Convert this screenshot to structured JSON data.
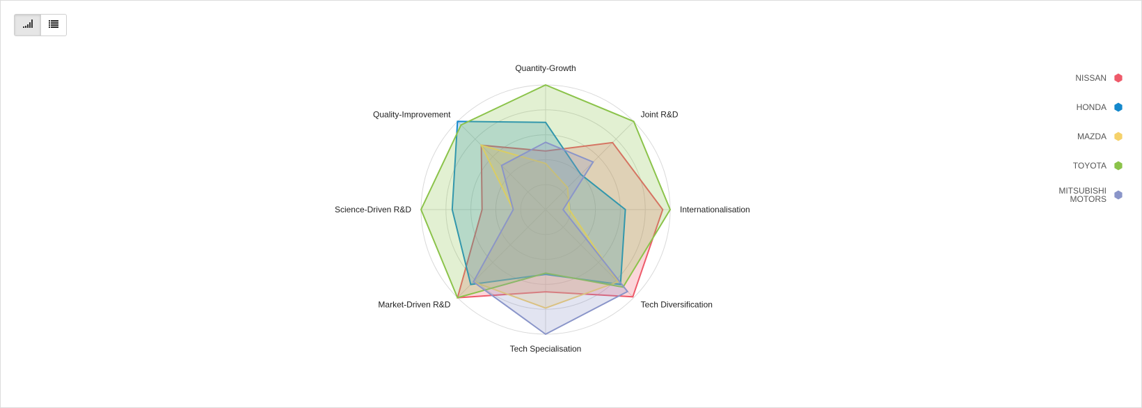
{
  "toolbar": {
    "chart_view_icon": "bar-chart-icon",
    "table_view_icon": "list-icon"
  },
  "colors": {
    "NISSAN": "#ee5a6a",
    "HONDA": "#1488cc",
    "MAZDA": "#f5d16a",
    "TOYOTA": "#8bc34a",
    "MITSUBISHI MOTORS": "#8a95c9"
  },
  "chart_data": {
    "type": "radar",
    "axes": [
      "Quantity-Growth",
      "Joint R&D",
      "Internationalisation",
      "Tech Diversification",
      "Tech Specialisation",
      "Market-Driven R&D",
      "Science-Driven R&D",
      "Quality-Improvement"
    ],
    "rlim": [
      0,
      1
    ],
    "grid_rings": 5,
    "legend_position": "right",
    "series": [
      {
        "name": "NISSAN",
        "values": [
          0.47,
          0.76,
          0.94,
          0.99,
          0.66,
          1.0,
          0.51,
          0.73
        ]
      },
      {
        "name": "HONDA",
        "values": [
          0.7,
          0.4,
          0.64,
          0.85,
          0.52,
          0.85,
          0.75,
          1.0
        ]
      },
      {
        "name": "MAZDA",
        "values": [
          0.37,
          0.25,
          0.19,
          0.82,
          0.79,
          0.82,
          0.26,
          0.73
        ]
      },
      {
        "name": "TOYOTA",
        "values": [
          1.0,
          1.0,
          1.0,
          0.88,
          0.51,
          1.0,
          1.0,
          0.96
        ]
      },
      {
        "name": "MITSUBISHI MOTORS",
        "values": [
          0.54,
          0.54,
          0.14,
          0.93,
          1.0,
          0.82,
          0.26,
          0.5
        ]
      }
    ]
  }
}
